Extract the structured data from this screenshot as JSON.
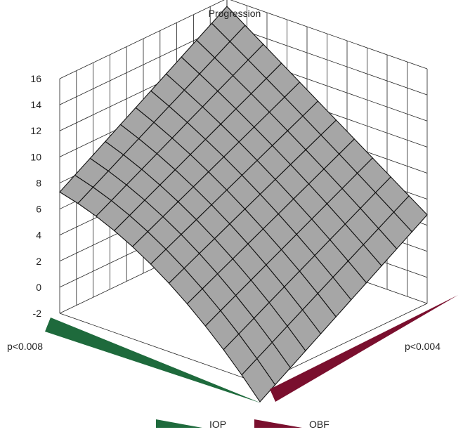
{
  "chart_data": {
    "type": "surface",
    "title": "Progression",
    "z_ticks": [
      "-2",
      "0",
      "2",
      "4",
      "6",
      "8",
      "10",
      "12",
      "14",
      "16"
    ],
    "zlim": [
      -2,
      16
    ],
    "x_axis": {
      "name": "IOP",
      "corner_label": "p<0.008",
      "color": "#1e6a3c"
    },
    "y_axis": {
      "name": "OBF",
      "corner_label": "p<0.004",
      "color": "#7a0f2e"
    },
    "grid_size": 11,
    "surface": {
      "color": "#a6a6a6",
      "corners": {
        "x_min_y_min": 7.3,
        "x_min_y_max": 15.4,
        "x_max_y_min": -3.4,
        "x_max_y_max": 4.8
      },
      "curvature": 1.8
    }
  }
}
